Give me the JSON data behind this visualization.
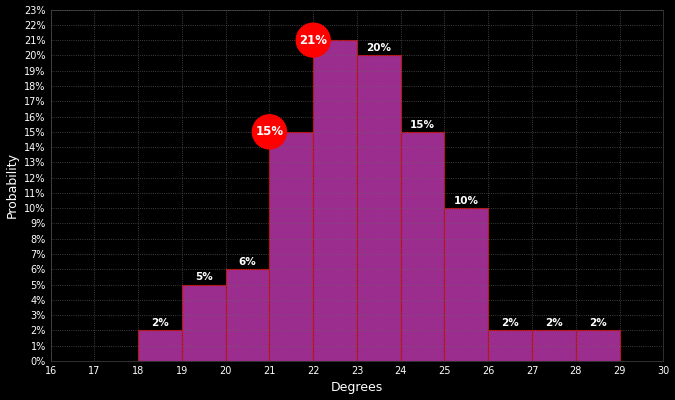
{
  "degrees": [
    16,
    17,
    18,
    19,
    20,
    21,
    22,
    23,
    24,
    25,
    26,
    27,
    28,
    29
  ],
  "probabilities": [
    0,
    0,
    2,
    5,
    6,
    15,
    21,
    20,
    15,
    10,
    2,
    2,
    2,
    0
  ],
  "bar_color": "#9B2D8E",
  "bar_edge_color": "#CC0000",
  "background_color": "#000000",
  "text_color": "#FFFFFF",
  "grid_color": "#666666",
  "xlabel": "Degrees",
  "ylabel": "Probability",
  "ylim_max": 23,
  "xlim_min": 16,
  "xlim_max": 30,
  "highlighted_bars": [
    21,
    22
  ],
  "highlight_color": "#CC0000",
  "label_fontsize": 7.5,
  "axis_label_fontsize": 9,
  "tick_fontsize": 7,
  "bar_labels": {
    "18": {
      "text": "2%",
      "highlighted": false
    },
    "19": {
      "text": "5%",
      "highlighted": false
    },
    "20": {
      "text": "6%",
      "highlighted": false
    },
    "21": {
      "text": "15%",
      "highlighted": true
    },
    "22": {
      "text": "21%",
      "highlighted": true
    },
    "23": {
      "text": "20%",
      "highlighted": false
    },
    "24": {
      "text": "15%",
      "highlighted": false
    },
    "25": {
      "text": "10%",
      "highlighted": false
    },
    "26": {
      "text": "2%",
      "highlighted": false
    },
    "27": {
      "text": "2%",
      "highlighted": false
    },
    "28": {
      "text": "2%",
      "highlighted": false
    }
  }
}
